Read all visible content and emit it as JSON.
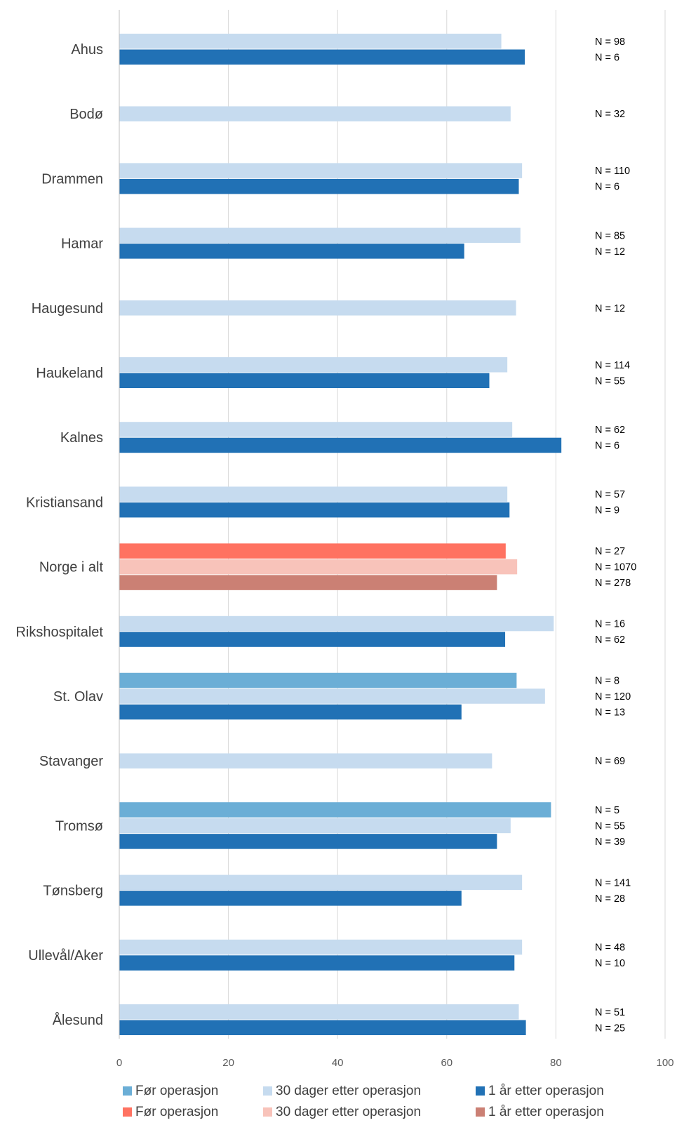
{
  "chart_data": {
    "type": "bar",
    "orientation": "horizontal",
    "title": "",
    "xlabel": "",
    "ylabel": "",
    "xlim": [
      0,
      100
    ],
    "x_ticks": [
      0,
      20,
      40,
      60,
      80,
      100
    ],
    "grid": true,
    "legend_position": "bottom",
    "series": [
      {
        "key": "for_blue",
        "name": "Før operasjon",
        "color": "#6BAED6"
      },
      {
        "key": "d30_blue",
        "name": "30 dager etter operasjon",
        "color": "#C6DBEF"
      },
      {
        "key": "y1_blue",
        "name": "1 år etter operasjon",
        "color": "#2171B5"
      },
      {
        "key": "for_red",
        "name": "Før operasjon",
        "color": "#FF7261"
      },
      {
        "key": "d30_red",
        "name": "30 dager etter operasjon",
        "color": "#F8C3BA"
      },
      {
        "key": "y1_red",
        "name": "1 år etter operasjon",
        "color": "#CB8074"
      }
    ],
    "categories": [
      {
        "name": "Ahus",
        "bars": [
          {
            "series": "d30_blue",
            "value": 70
          },
          {
            "series": "y1_blue",
            "value": 74.3
          }
        ],
        "n_labels": [
          "N = 98",
          "N = 6"
        ]
      },
      {
        "name": "Bodø",
        "bars": [
          {
            "series": "d30_blue",
            "value": 71.7
          }
        ],
        "n_labels": [
          "N = 32"
        ]
      },
      {
        "name": "Drammen",
        "bars": [
          {
            "series": "d30_blue",
            "value": 73.8
          },
          {
            "series": "y1_blue",
            "value": 73.2
          }
        ],
        "n_labels": [
          "N = 110",
          "N = 6"
        ]
      },
      {
        "name": "Hamar",
        "bars": [
          {
            "series": "d30_blue",
            "value": 73.5
          },
          {
            "series": "y1_blue",
            "value": 63.2
          }
        ],
        "n_labels": [
          "N = 85",
          "N = 12"
        ]
      },
      {
        "name": "Haugesund",
        "bars": [
          {
            "series": "d30_blue",
            "value": 72.7
          }
        ],
        "n_labels": [
          "N = 12"
        ]
      },
      {
        "name": "Haukeland",
        "bars": [
          {
            "series": "d30_blue",
            "value": 71.1
          },
          {
            "series": "y1_blue",
            "value": 67.8
          }
        ],
        "n_labels": [
          "N = 114",
          "N = 55"
        ]
      },
      {
        "name": "Kalnes",
        "bars": [
          {
            "series": "d30_blue",
            "value": 72
          },
          {
            "series": "y1_blue",
            "value": 81
          }
        ],
        "n_labels": [
          "N = 62",
          "N = 6"
        ]
      },
      {
        "name": "Kristiansand",
        "bars": [
          {
            "series": "d30_blue",
            "value": 71.1
          },
          {
            "series": "y1_blue",
            "value": 71.5
          }
        ],
        "n_labels": [
          "N = 57",
          "N = 9"
        ]
      },
      {
        "name": "Norge i alt",
        "bars": [
          {
            "series": "for_red",
            "value": 70.8
          },
          {
            "series": "d30_red",
            "value": 72.9
          },
          {
            "series": "y1_red",
            "value": 69.2
          }
        ],
        "n_labels": [
          "N = 27",
          "N = 1070",
          "N = 278"
        ]
      },
      {
        "name": "Rikshospitalet",
        "bars": [
          {
            "series": "d30_blue",
            "value": 79.6
          },
          {
            "series": "y1_blue",
            "value": 70.7
          }
        ],
        "n_labels": [
          "N = 16",
          "N = 62"
        ]
      },
      {
        "name": "St. Olav",
        "bars": [
          {
            "series": "for_blue",
            "value": 72.8
          },
          {
            "series": "d30_blue",
            "value": 78
          },
          {
            "series": "y1_blue",
            "value": 62.7
          }
        ],
        "n_labels": [
          "N = 8",
          "N = 120",
          "N = 13"
        ]
      },
      {
        "name": "Stavanger",
        "bars": [
          {
            "series": "d30_blue",
            "value": 68.3
          }
        ],
        "n_labels": [
          "N = 69"
        ]
      },
      {
        "name": "Tromsø",
        "bars": [
          {
            "series": "for_blue",
            "value": 79.1
          },
          {
            "series": "d30_blue",
            "value": 71.7
          },
          {
            "series": "y1_blue",
            "value": 69.2
          }
        ],
        "n_labels": [
          "N = 5",
          "N = 55",
          "N = 39"
        ]
      },
      {
        "name": "Tønsberg",
        "bars": [
          {
            "series": "d30_blue",
            "value": 73.8
          },
          {
            "series": "y1_blue",
            "value": 62.7
          }
        ],
        "n_labels": [
          "N = 141",
          "N = 28"
        ]
      },
      {
        "name": "Ullevål/Aker",
        "bars": [
          {
            "series": "d30_blue",
            "value": 73.8
          },
          {
            "series": "y1_blue",
            "value": 72.4
          }
        ],
        "n_labels": [
          "N = 48",
          "N = 10"
        ]
      },
      {
        "name": "Ålesund",
        "bars": [
          {
            "series": "d30_blue",
            "value": 73.2
          },
          {
            "series": "y1_blue",
            "value": 74.5
          }
        ],
        "n_labels": [
          "N = 51",
          "N = 25"
        ]
      }
    ]
  }
}
